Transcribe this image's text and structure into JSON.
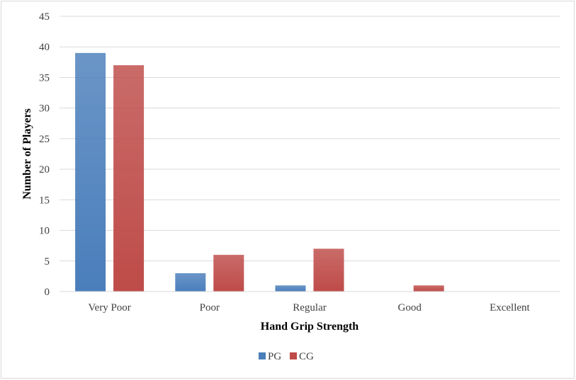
{
  "chart_data": {
    "type": "bar",
    "title": "",
    "xlabel": "Hand Grip Strength",
    "ylabel": "Number of Players",
    "categories": [
      "Very Poor",
      "Poor",
      "Regular",
      "Good",
      "Excellent"
    ],
    "series": [
      {
        "name": "PG",
        "values": [
          39,
          3,
          1,
          0,
          0
        ],
        "color": "#4a7ebb"
      },
      {
        "name": "CG",
        "values": [
          37,
          6,
          7,
          1,
          0
        ],
        "color": "#be4b48"
      }
    ],
    "ylim": [
      0,
      45
    ],
    "yticks": [
      0,
      5,
      10,
      15,
      20,
      25,
      30,
      35,
      40,
      45
    ],
    "grid": true,
    "legend_position": "bottom"
  }
}
